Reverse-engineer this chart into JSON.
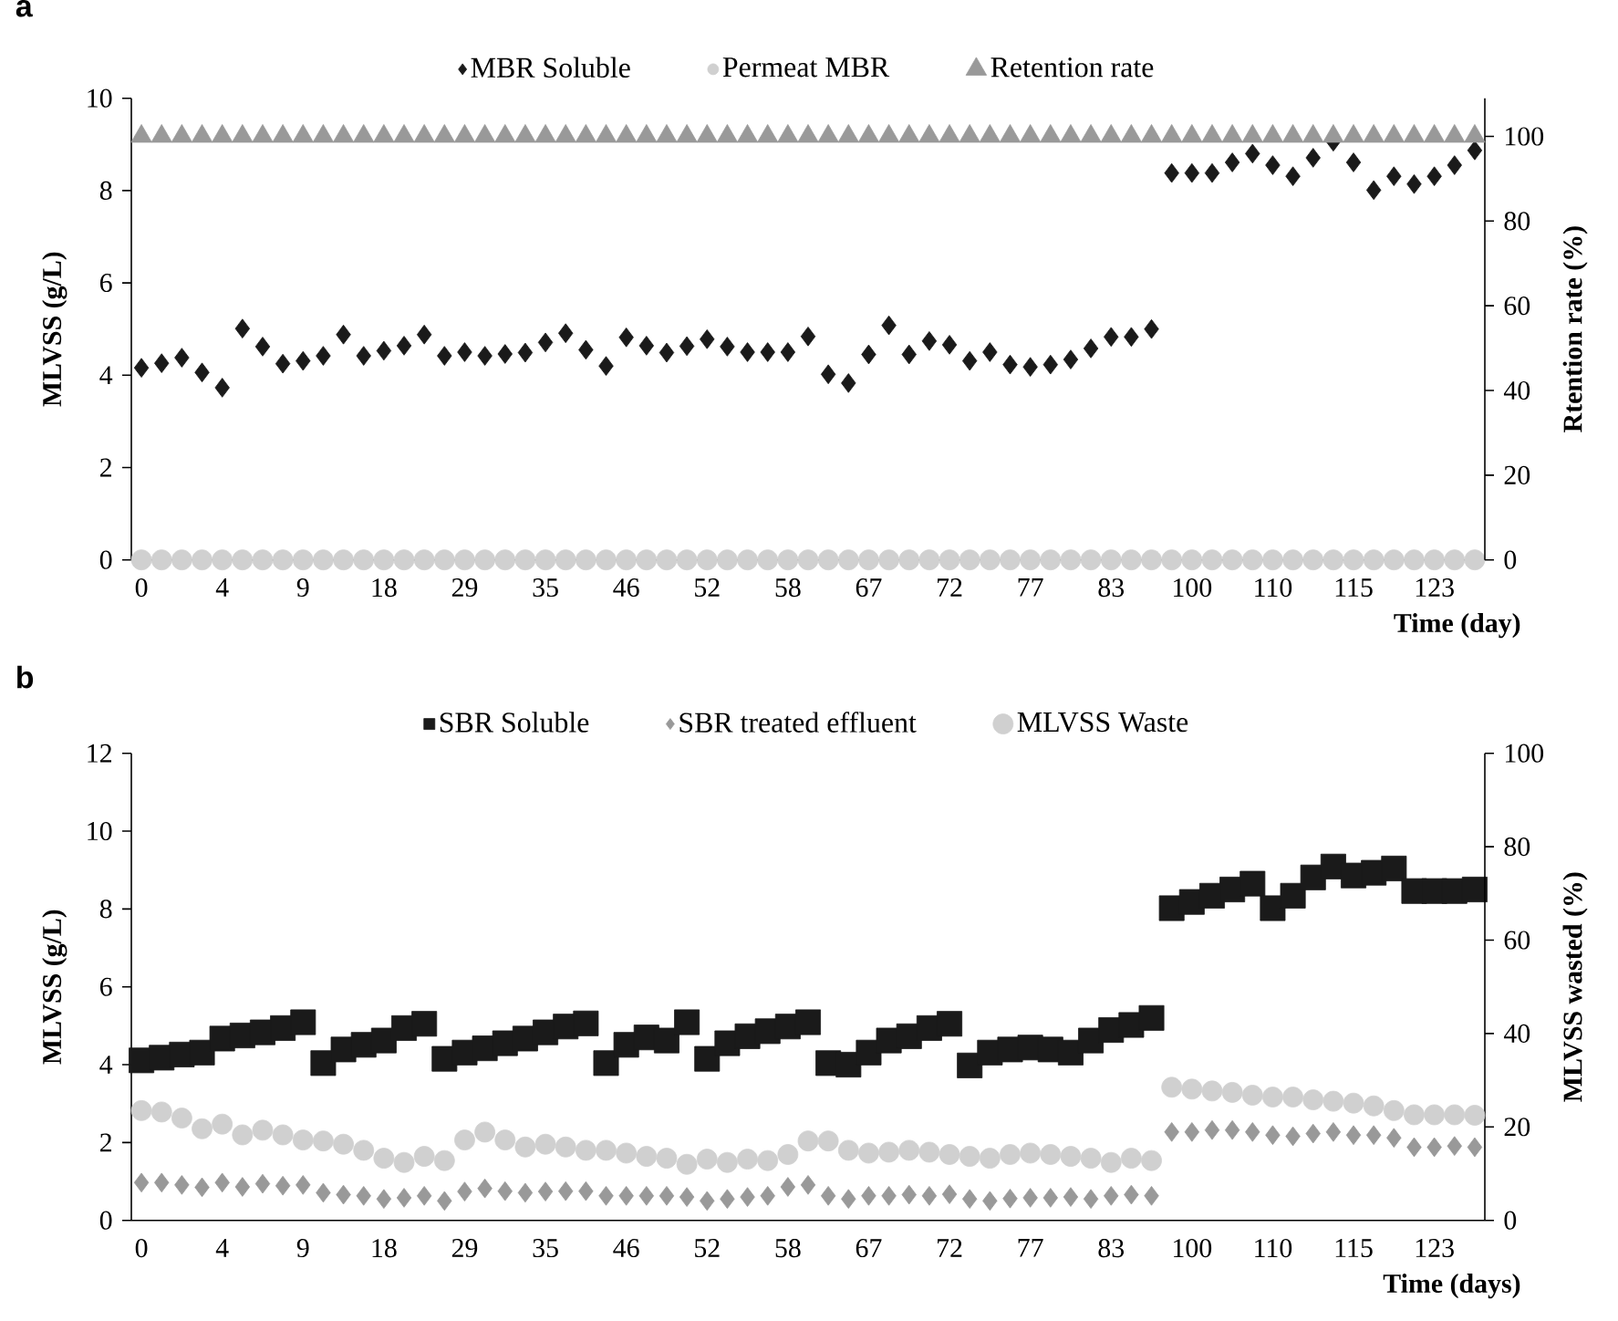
{
  "chart_data": [
    {
      "type": "scatter",
      "title": "a",
      "ylabel": "MLVSS (g/L)",
      "y2label": "Rtention rate (%)",
      "xlabel": "Time (day)",
      "categories": [
        "0",
        null,
        null,
        null,
        "4",
        null,
        null,
        null,
        "9",
        null,
        null,
        null,
        "18",
        null,
        null,
        null,
        "29",
        null,
        null,
        null,
        "35",
        null,
        null,
        null,
        "46",
        null,
        null,
        null,
        "52",
        null,
        null,
        null,
        "58",
        null,
        null,
        null,
        "67",
        null,
        null,
        null,
        "72",
        null,
        null,
        null,
        "77",
        null,
        null,
        null,
        "83",
        null,
        null,
        null,
        "100",
        null,
        null,
        null,
        "110",
        null,
        null,
        null,
        "115",
        null,
        null,
        null,
        "123",
        null,
        null
      ],
      "ylim": [
        0,
        10
      ],
      "yticks": [
        0,
        2,
        4,
        6,
        8,
        10
      ],
      "y2lim": [
        0,
        109
      ],
      "y2ticks": [
        0,
        20,
        40,
        60,
        80,
        100
      ],
      "legend": "top",
      "series": [
        {
          "name": "MBR Soluble",
          "color": "#1a1a1a",
          "marker": "diamond",
          "values": [
            4.16,
            4.26,
            4.38,
            4.06,
            3.73,
            5.01,
            4.62,
            4.25,
            4.31,
            4.42,
            4.88,
            4.42,
            4.53,
            4.64,
            4.88,
            4.42,
            4.5,
            4.42,
            4.46,
            4.49,
            4.71,
            4.91,
            4.55,
            4.2,
            4.82,
            4.64,
            4.49,
            4.63,
            4.78,
            4.62,
            4.5,
            4.5,
            4.5,
            4.84,
            4.02,
            3.83,
            4.45,
            5.08,
            4.45,
            4.74,
            4.66,
            4.31,
            4.5,
            4.23,
            4.18,
            4.23,
            4.34,
            4.58,
            4.83,
            4.83,
            5.0,
            8.38,
            8.38,
            8.38,
            8.61,
            8.8,
            8.55,
            8.31,
            8.71,
            9.06,
            8.61,
            8.01,
            8.31,
            8.14,
            8.31,
            8.55,
            8.87
          ]
        },
        {
          "name": "Permeat MBR",
          "color": "#d0d0d0",
          "marker": "circle",
          "values": [
            0,
            0,
            0,
            0,
            0,
            0,
            0,
            0,
            0,
            0,
            0,
            0,
            0,
            0,
            0,
            0,
            0,
            0,
            0,
            0,
            0,
            0,
            0,
            0,
            0,
            0,
            0,
            0,
            0,
            0,
            0,
            0,
            0,
            0,
            0,
            0,
            0,
            0,
            0,
            0,
            0,
            0,
            0,
            0,
            0,
            0,
            0,
            0,
            0,
            0,
            0,
            0,
            0,
            0,
            0,
            0,
            0,
            0,
            0,
            0,
            0,
            0,
            0,
            0,
            0,
            0,
            0
          ]
        },
        {
          "name": "Retention rate",
          "color": "#999999",
          "marker": "triangle",
          "axis": "y2",
          "values": [
            100,
            100,
            100,
            100,
            100,
            100,
            100,
            100,
            100,
            100,
            100,
            100,
            100,
            100,
            100,
            100,
            100,
            100,
            100,
            100,
            100,
            100,
            100,
            100,
            100,
            100,
            100,
            100,
            100,
            100,
            100,
            100,
            100,
            100,
            100,
            100,
            100,
            100,
            100,
            100,
            100,
            100,
            100,
            100,
            100,
            100,
            100,
            100,
            100,
            100,
            100,
            100,
            100,
            100,
            100,
            100,
            100,
            100,
            100,
            100,
            100,
            100,
            100,
            100,
            100,
            100,
            100
          ]
        }
      ]
    },
    {
      "type": "scatter",
      "title": "b",
      "ylabel": "MLVSS (g/L)",
      "y2label": "MLVSS wasted (%)",
      "xlabel": "Time (days)",
      "categories": [
        "0",
        null,
        null,
        null,
        "4",
        null,
        null,
        null,
        "9",
        null,
        null,
        null,
        "18",
        null,
        null,
        null,
        "29",
        null,
        null,
        null,
        "35",
        null,
        null,
        null,
        "46",
        null,
        null,
        null,
        "52",
        null,
        null,
        null,
        "58",
        null,
        null,
        null,
        "67",
        null,
        null,
        null,
        "72",
        null,
        null,
        null,
        "77",
        null,
        null,
        null,
        "83",
        null,
        null,
        null,
        "100",
        null,
        null,
        null,
        "110",
        null,
        null,
        null,
        "115",
        null,
        null,
        null,
        "123",
        null,
        null
      ],
      "ylim": [
        0,
        12
      ],
      "yticks": [
        0,
        2,
        4,
        6,
        8,
        10,
        12
      ],
      "y2lim": [
        0,
        100
      ],
      "y2ticks": [
        0,
        20,
        40,
        60,
        80,
        100
      ],
      "legend": "top",
      "series": [
        {
          "name": "SBR Soluble",
          "color": "#1a1a1a",
          "marker": "square",
          "values": [
            4.11,
            4.18,
            4.26,
            4.31,
            4.67,
            4.75,
            4.83,
            4.94,
            5.09,
            4.04,
            4.39,
            4.51,
            4.62,
            4.94,
            5.05,
            4.15,
            4.31,
            4.42,
            4.55,
            4.67,
            4.83,
            4.98,
            5.06,
            4.04,
            4.51,
            4.7,
            4.62,
            5.09,
            4.15,
            4.55,
            4.73,
            4.86,
            4.98,
            5.09,
            4.04,
            4.0,
            4.31,
            4.62,
            4.73,
            4.94,
            5.05,
            3.98,
            4.31,
            4.39,
            4.44,
            4.39,
            4.31,
            4.62,
            4.89,
            5.02,
            5.2,
            8.02,
            8.18,
            8.34,
            8.5,
            8.65,
            8.02,
            8.34,
            8.81,
            9.09,
            8.86,
            8.93,
            9.04,
            8.46,
            8.46,
            8.46,
            8.5
          ]
        },
        {
          "name": "SBR treated effluent",
          "color": "#999999",
          "marker": "diamond",
          "values": [
            0.97,
            0.97,
            0.91,
            0.85,
            0.97,
            0.86,
            0.94,
            0.89,
            0.91,
            0.71,
            0.66,
            0.63,
            0.55,
            0.58,
            0.63,
            0.5,
            0.74,
            0.82,
            0.75,
            0.71,
            0.74,
            0.75,
            0.75,
            0.63,
            0.63,
            0.63,
            0.63,
            0.6,
            0.5,
            0.55,
            0.6,
            0.63,
            0.86,
            0.91,
            0.63,
            0.55,
            0.63,
            0.63,
            0.66,
            0.63,
            0.67,
            0.55,
            0.5,
            0.56,
            0.58,
            0.58,
            0.6,
            0.55,
            0.63,
            0.66,
            0.63,
            2.27,
            2.27,
            2.32,
            2.32,
            2.27,
            2.19,
            2.16,
            2.23,
            2.27,
            2.19,
            2.19,
            2.12,
            1.88,
            1.88,
            1.91,
            1.88
          ]
        },
        {
          "name": "MLVSS Waste",
          "color": "#d0d0d0",
          "marker": "circle",
          "axis": "y2",
          "values": [
            23.5,
            23.2,
            21.9,
            19.6,
            20.6,
            18.3,
            19.3,
            18.3,
            17.2,
            17.0,
            16.3,
            15.0,
            13.3,
            12.4,
            13.7,
            12.8,
            17.2,
            18.9,
            17.2,
            15.7,
            16.3,
            15.7,
            15.0,
            15.0,
            14.4,
            13.7,
            13.3,
            12.0,
            13.1,
            12.4,
            13.1,
            12.8,
            14.1,
            17.0,
            17.0,
            15.0,
            14.4,
            14.6,
            15.0,
            14.6,
            14.1,
            13.7,
            13.3,
            14.1,
            14.4,
            14.1,
            13.7,
            13.3,
            12.4,
            13.3,
            12.8,
            28.5,
            28.1,
            27.7,
            27.4,
            26.8,
            26.4,
            26.4,
            25.8,
            25.5,
            25.1,
            24.5,
            23.5,
            22.6,
            22.6,
            22.6,
            22.5
          ]
        }
      ]
    }
  ]
}
